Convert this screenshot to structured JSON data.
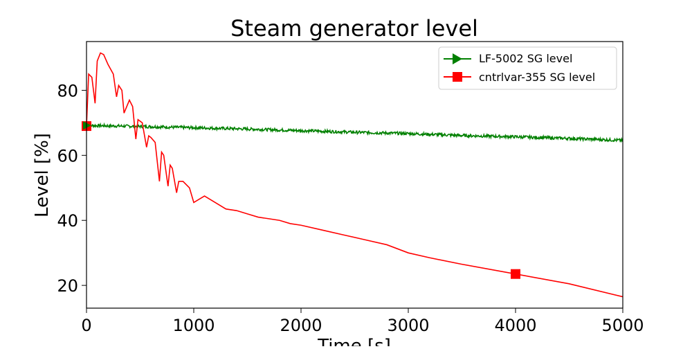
{
  "chart_data": {
    "type": "line",
    "title": "Steam generator level",
    "xlabel": "Time [s]",
    "ylabel": "Level [%]",
    "xlim": [
      0,
      5000
    ],
    "ylim": [
      13,
      95
    ],
    "xticks": [
      0,
      1000,
      2000,
      3000,
      4000,
      5000
    ],
    "xtick_labels": [
      "0",
      "1000",
      "2000",
      "3000",
      "4000",
      "5000"
    ],
    "yticks": [
      20,
      40,
      60,
      80
    ],
    "ytick_labels": [
      "20",
      "40",
      "60",
      "80"
    ],
    "grid": false,
    "legend_position": "top-right",
    "series": [
      {
        "name": "LF-5002 SG level",
        "color": "#008000",
        "marker": "triangle-right",
        "x": [
          0,
          500,
          1000,
          1500,
          2000,
          2500,
          3000,
          3500,
          4000,
          4500,
          5000
        ],
        "y": [
          69.2,
          68.9,
          68.5,
          68.1,
          67.6,
          67.1,
          66.7,
          66.1,
          65.7,
          65.2,
          64.6
        ]
      },
      {
        "name": "cntrlvar-355 SG level",
        "color": "#ff0000",
        "marker": "square",
        "x": [
          0,
          20,
          50,
          80,
          100,
          130,
          160,
          200,
          250,
          280,
          300,
          330,
          350,
          400,
          430,
          460,
          480,
          520,
          560,
          580,
          600,
          640,
          680,
          700,
          720,
          760,
          780,
          800,
          840,
          860,
          900,
          960,
          1000,
          1100,
          1200,
          1300,
          1400,
          1500,
          1600,
          1700,
          1800,
          1900,
          2000,
          2200,
          2400,
          2600,
          2800,
          3000,
          3200,
          3500,
          4000,
          4500,
          5000
        ],
        "y": [
          69,
          85,
          84,
          76,
          89,
          91.5,
          91,
          88,
          85,
          78,
          81.5,
          80,
          73,
          77,
          75,
          65,
          71,
          70,
          62.5,
          66,
          65.5,
          64,
          52,
          61,
          60,
          50.5,
          57,
          56,
          48.5,
          52,
          52,
          50,
          45.5,
          47.5,
          45.5,
          43.5,
          43,
          42,
          41,
          40.5,
          40,
          39,
          38.5,
          37,
          35.5,
          34,
          32.5,
          30,
          28.5,
          26.5,
          23.5,
          20.5,
          16.5
        ]
      }
    ]
  }
}
